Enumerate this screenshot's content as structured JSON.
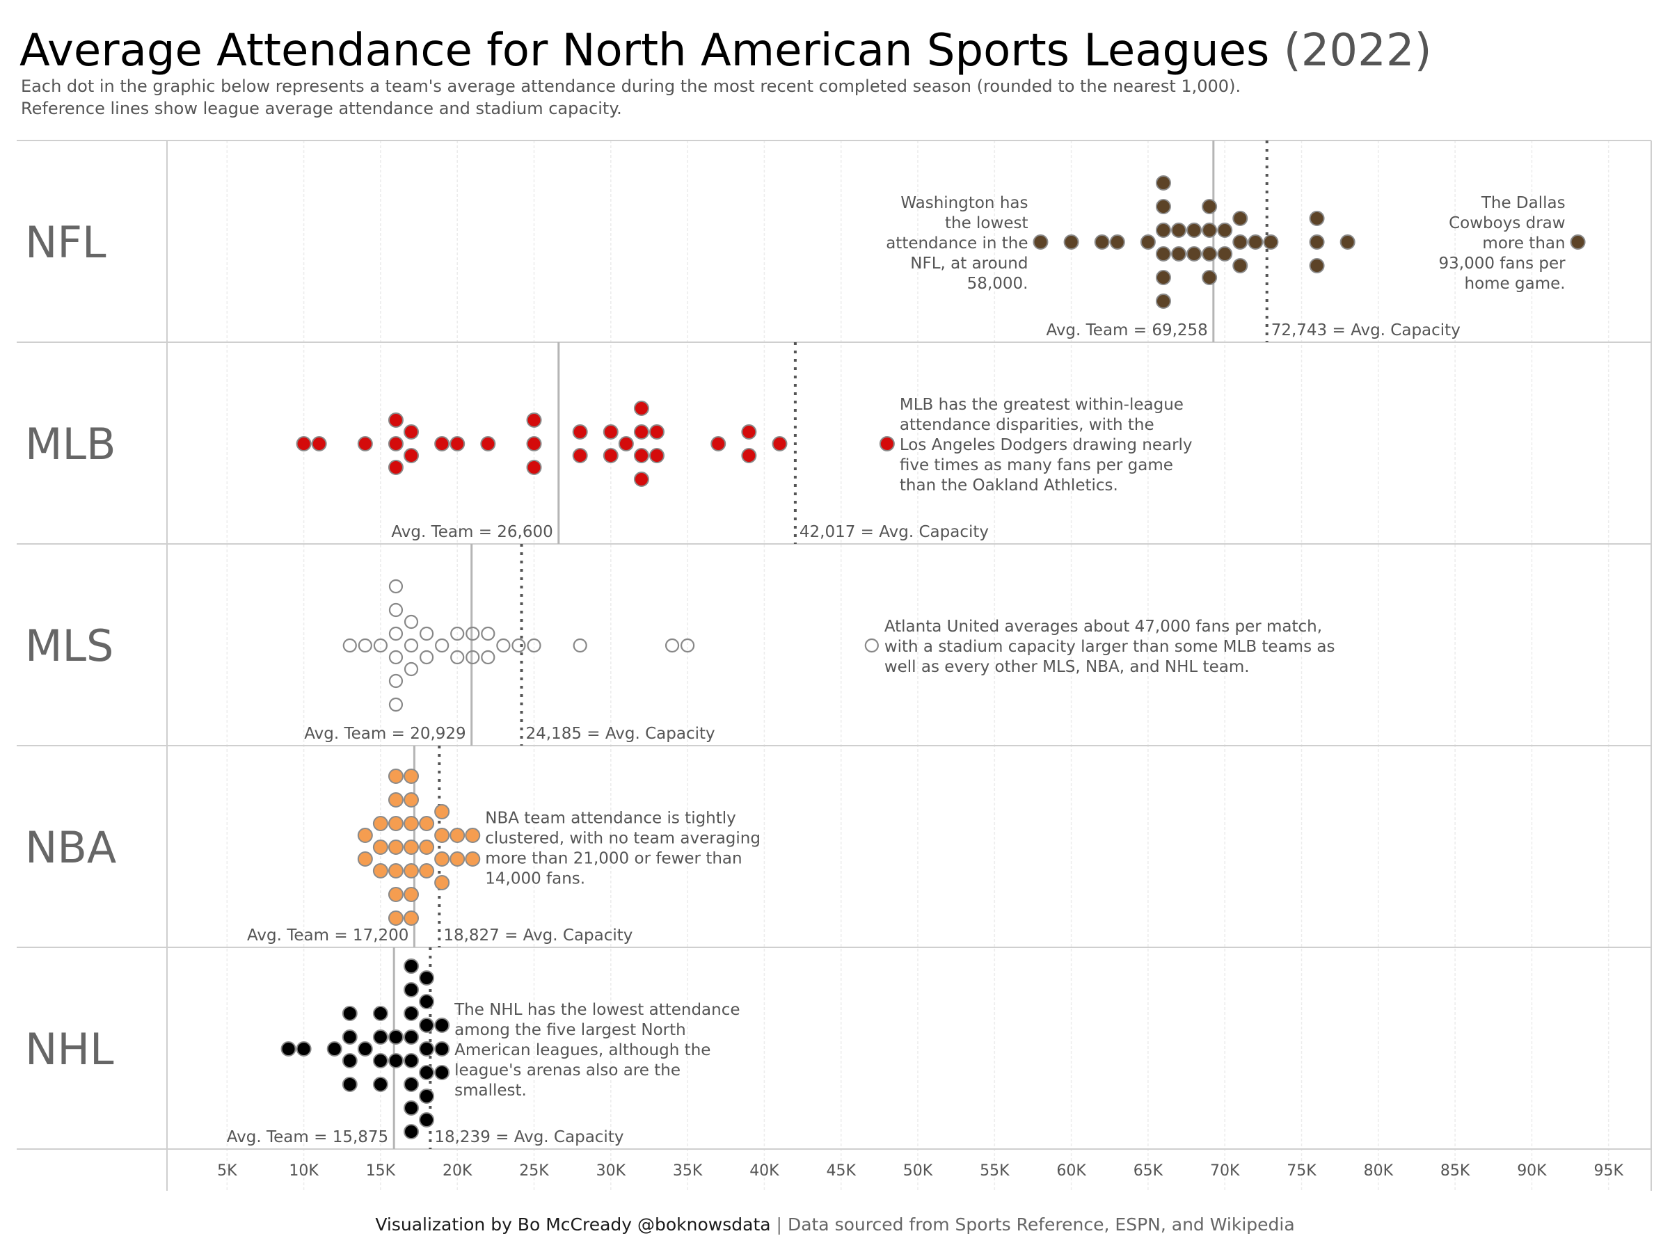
{
  "title": {
    "main": "Average Attendance for North American Sports Leagues",
    "year": "(2022)"
  },
  "subtitle": [
    "Each dot in the graphic below represents a team's average attendance during the most recent completed season (rounded to the nearest 1,000).",
    "Reference lines show league average attendance and stadium capacity."
  ],
  "footer": {
    "credit": "Visualization by Bo McCready @boknowsdata",
    "separator": "|",
    "source": "Data sourced from Sports Reference, ESPN, and Wikipedia"
  },
  "chart_data": {
    "type": "scatter",
    "subtype": "dot-plot",
    "title": "Average Attendance for North American Sports Leagues (2022)",
    "xlabel": "",
    "ylabel": "",
    "x_unit": "thousands of fans per game",
    "xlim": [
      1.1,
      97.8
    ],
    "x_ticks": [
      5,
      10,
      15,
      20,
      25,
      30,
      35,
      40,
      45,
      50,
      55,
      60,
      65,
      70,
      75,
      80,
      85,
      90,
      95
    ],
    "x_tick_labels": [
      "5K",
      "10K",
      "15K",
      "20K",
      "25K",
      "30K",
      "35K",
      "40K",
      "45K",
      "50K",
      "55K",
      "60K",
      "65K",
      "70K",
      "75K",
      "80K",
      "85K",
      "90K",
      "95K"
    ],
    "grid": true,
    "legend": "none",
    "series": [
      {
        "name": "NFL",
        "color": "#5c4327",
        "filled": true,
        "avg_team": 69.258,
        "avg_team_label": "Avg. Team = 69,258",
        "avg_capacity": 72.743,
        "avg_capacity_label": "72,743 = Avg. Capacity",
        "values": [
          {
            "x": 58,
            "count": 1
          },
          {
            "x": 60,
            "count": 1
          },
          {
            "x": 62,
            "count": 1
          },
          {
            "x": 63,
            "count": 1
          },
          {
            "x": 65,
            "count": 1
          },
          {
            "x": 66,
            "count": 6
          },
          {
            "x": 67,
            "count": 2
          },
          {
            "x": 68,
            "count": 2
          },
          {
            "x": 69,
            "count": 4
          },
          {
            "x": 70,
            "count": 2
          },
          {
            "x": 71,
            "count": 3
          },
          {
            "x": 72,
            "count": 1
          },
          {
            "x": 73,
            "count": 1
          },
          {
            "x": 76,
            "count": 3
          },
          {
            "x": 78,
            "count": 1
          },
          {
            "x": 93,
            "count": 1
          }
        ],
        "annotations": [
          {
            "text": [
              "Washington has",
              "the lowest",
              "attendance in the",
              "NFL, at around",
              "58,000."
            ],
            "anchor_x": 58,
            "side": "left"
          },
          {
            "text": [
              "The Dallas",
              "Cowboys draw",
              "more than",
              "93,000 fans per",
              "home game."
            ],
            "anchor_x": 93,
            "side": "left"
          }
        ]
      },
      {
        "name": "MLB",
        "color": "#d40b0b",
        "filled": true,
        "avg_team": 26.6,
        "avg_team_label": "Avg. Team = 26,600",
        "avg_capacity": 42.017,
        "avg_capacity_label": "42,017 = Avg. Capacity",
        "values": [
          {
            "x": 10,
            "count": 1
          },
          {
            "x": 11,
            "count": 1
          },
          {
            "x": 14,
            "count": 1
          },
          {
            "x": 16,
            "count": 3
          },
          {
            "x": 17,
            "count": 2
          },
          {
            "x": 19,
            "count": 1
          },
          {
            "x": 20,
            "count": 1
          },
          {
            "x": 22,
            "count": 1
          },
          {
            "x": 25,
            "count": 3
          },
          {
            "x": 28,
            "count": 2
          },
          {
            "x": 30,
            "count": 2
          },
          {
            "x": 31,
            "count": 1
          },
          {
            "x": 32,
            "count": 4
          },
          {
            "x": 33,
            "count": 2
          },
          {
            "x": 37,
            "count": 1
          },
          {
            "x": 39,
            "count": 2
          },
          {
            "x": 41,
            "count": 1
          },
          {
            "x": 48,
            "count": 1
          }
        ],
        "annotations": [
          {
            "text": [
              "MLB has the greatest within-league",
              "attendance disparities, with the",
              "Los Angeles Dodgers drawing nearly",
              "five times as many fans per game",
              "than the Oakland Athletics."
            ],
            "anchor_x": 48,
            "side": "right"
          }
        ]
      },
      {
        "name": "MLS",
        "color": "#888888",
        "filled": false,
        "avg_team": 20.929,
        "avg_team_label": "Avg. Team = 20,929",
        "avg_capacity": 24.185,
        "avg_capacity_label": "24,185 = Avg. Capacity",
        "values": [
          {
            "x": 13,
            "count": 1
          },
          {
            "x": 14,
            "count": 1
          },
          {
            "x": 15,
            "count": 1
          },
          {
            "x": 16,
            "count": 6
          },
          {
            "x": 17,
            "count": 3
          },
          {
            "x": 18,
            "count": 2
          },
          {
            "x": 19,
            "count": 1
          },
          {
            "x": 20,
            "count": 2
          },
          {
            "x": 21,
            "count": 2
          },
          {
            "x": 22,
            "count": 2
          },
          {
            "x": 23,
            "count": 1
          },
          {
            "x": 24,
            "count": 1
          },
          {
            "x": 25,
            "count": 1
          },
          {
            "x": 28,
            "count": 1
          },
          {
            "x": 34,
            "count": 1
          },
          {
            "x": 35,
            "count": 1
          },
          {
            "x": 47,
            "count": 1
          }
        ],
        "annotations": [
          {
            "text": [
              "Atlanta United averages about 47,000 fans per match,",
              "with a stadium capacity larger than some MLB teams as",
              "well as every other MLS, NBA, and NHL team."
            ],
            "anchor_x": 47,
            "side": "right"
          }
        ]
      },
      {
        "name": "NBA",
        "color": "#f59d50",
        "filled": true,
        "avg_team": 17.2,
        "avg_team_label": "Avg. Team = 17,200",
        "avg_capacity": 18.827,
        "avg_capacity_label": "18,827 = Avg. Capacity",
        "values": [
          {
            "x": 14,
            "count": 2
          },
          {
            "x": 15,
            "count": 3
          },
          {
            "x": 16,
            "count": 7
          },
          {
            "x": 17,
            "count": 7
          },
          {
            "x": 18,
            "count": 3
          },
          {
            "x": 19,
            "count": 4
          },
          {
            "x": 20,
            "count": 2
          },
          {
            "x": 21,
            "count": 2
          }
        ],
        "annotations": [
          {
            "text": [
              "NBA team attendance is tightly",
              "clustered, with no team averaging",
              "more than 21,000 or fewer than",
              "14,000 fans."
            ],
            "anchor_x": 21,
            "side": "right"
          }
        ]
      },
      {
        "name": "NHL",
        "color": "#000000",
        "filled": true,
        "avg_team": 15.875,
        "avg_team_label": "Avg. Team = 15,875",
        "avg_capacity": 18.239,
        "avg_capacity_label": "18,239 = Avg. Capacity",
        "values": [
          {
            "x": 9,
            "count": 1
          },
          {
            "x": 10,
            "count": 1
          },
          {
            "x": 12,
            "count": 1
          },
          {
            "x": 13,
            "count": 4
          },
          {
            "x": 14,
            "count": 1
          },
          {
            "x": 15,
            "count": 4
          },
          {
            "x": 16,
            "count": 2
          },
          {
            "x": 17,
            "count": 8
          },
          {
            "x": 18,
            "count": 7
          },
          {
            "x": 19,
            "count": 3
          }
        ],
        "annotations": [
          {
            "text": [
              "The NHL has the lowest attendance",
              "among the five largest North",
              "American leagues, although the",
              "league's arenas also are the",
              "smallest."
            ],
            "anchor_x": 19,
            "side": "right"
          }
        ]
      }
    ]
  }
}
